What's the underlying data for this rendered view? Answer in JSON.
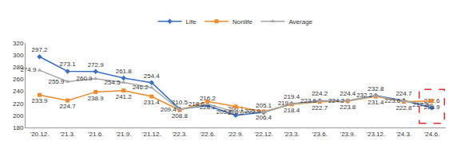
{
  "chart_data": {
    "type": "line",
    "categories": [
      "'20.12.",
      "'21.3.",
      "'21.6.",
      "'21.9.",
      "'21.12.",
      "'22.3.",
      "'22.6.",
      "'22.9.",
      "'22.12.",
      "'23.3.",
      "'23.6.",
      "'23.9.",
      "'23.12.",
      "'24.3.",
      "'24.6."
    ],
    "series": [
      {
        "name": "Life",
        "color": "#3a6fc4",
        "marker": "diamond",
        "values": [
          297.2,
          273.1,
          272.9,
          261.8,
          254.4,
          210.5,
          216.2,
          200.1,
          205.1,
          219.4,
          224.2,
          224.4,
          232.8,
          224.7,
          212.6
        ]
      },
      {
        "name": "Nonlife",
        "color": "#f08a2c",
        "marker": "square",
        "values": [
          233.9,
          224.7,
          238.9,
          241.2,
          231.4,
          208.8,
          223.2,
          214.6,
          206.4,
          218.4,
          222.7,
          223.8,
          231.4,
          222.8,
          223.9
        ]
      },
      {
        "name": "Average",
        "color": "#a6a6a6",
        "marker": "triangle-up",
        "values": [
          274.9,
          255.9,
          260.9,
          254.5,
          246.2,
          209.4,
          218.6,
          205.6,
          205.9,
          219.0,
          223.6,
          224.2,
          232.2,
          223.6,
          217.3
        ]
      }
    ],
    "ylim": [
      180,
      320
    ],
    "yticks": [
      180,
      200,
      220,
      240,
      260,
      280,
      300,
      320
    ],
    "grid": false,
    "legend": "top",
    "data_labels": true
  }
}
